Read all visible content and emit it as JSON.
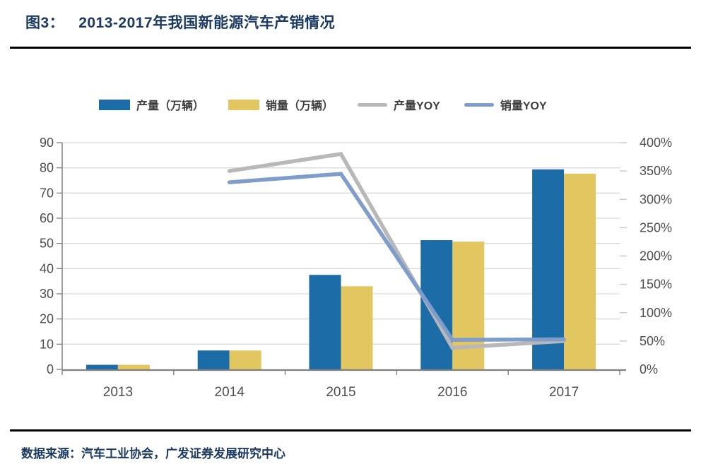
{
  "header": {
    "figure_label": "图3：",
    "title": "2013-2017年我国新能源汽车产销情况"
  },
  "footer": {
    "source": "数据来源：汽车工业协会，广发证券发展研究中心"
  },
  "colors": {
    "title_navy": "#1b3a63",
    "production_bar": "#1c6ca7",
    "sales_bar": "#e2c761",
    "production_yoy_line": "#b8b8b8",
    "sales_yoy_line": "#7e9dcb",
    "gridline": "#d9d9d9",
    "axis": "#808080",
    "tick_label": "#4d4d4d"
  },
  "chart_data": {
    "type": "bar+line",
    "title": "2013-2017年我国新能源汽车产销情况",
    "categories": [
      "2013",
      "2014",
      "2015",
      "2016",
      "2017"
    ],
    "bar_series": [
      {
        "name": "产量（万辆）",
        "color": "#1c6ca7",
        "values": [
          1.8,
          7.5,
          37.5,
          51.3,
          79.4
        ]
      },
      {
        "name": "销量（万辆）",
        "color": "#e2c761",
        "values": [
          1.8,
          7.5,
          33.0,
          50.7,
          77.7
        ]
      }
    ],
    "line_series": [
      {
        "name": "产量YOY",
        "color": "#b8b8b8",
        "values": [
          null,
          350,
          380,
          38,
          50
        ]
      },
      {
        "name": "销量YOY",
        "color": "#7e9dcb",
        "values": [
          null,
          330,
          345,
          52,
          53
        ]
      }
    ],
    "left_axis": {
      "min": 0,
      "max": 90,
      "step": 10,
      "ticks": [
        "0",
        "10",
        "20",
        "30",
        "40",
        "50",
        "60",
        "70",
        "80",
        "90"
      ]
    },
    "right_axis": {
      "min": 0,
      "max": 400,
      "step": 50,
      "ticks": [
        "0%",
        "50%",
        "100%",
        "150%",
        "200%",
        "250%",
        "300%",
        "350%",
        "400%"
      ]
    },
    "grid": true,
    "legend_position": "top"
  }
}
